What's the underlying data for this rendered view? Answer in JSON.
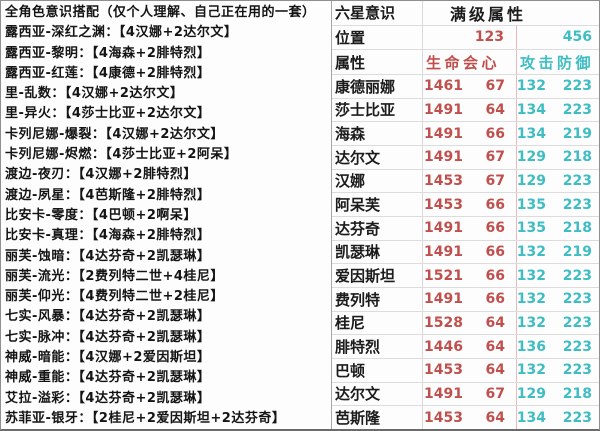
{
  "left_panel": {
    "title": "全角色意识搭配（仅个人理解、自己正在用的一套）",
    "builds": [
      "露西亚-深红之渊：【4汉娜+2达尔文】",
      "露西亚-黎明：【4海森+2腓特烈】",
      "露西亚-红莲：【4康德+2腓特烈】",
      "里-乱数：【4汉娜+2达尔文】",
      "里-异火：【4莎士比亚+2达尔文】",
      "卡列尼娜-爆裂：【4汉娜+2达尔文】",
      "卡列尼娜-烬燃：【4莎士比亚+2阿呆】",
      "渡边-夜刃：【4汉娜+2腓特烈】",
      "渡边-夙星：【4芭斯隆+2腓特烈】",
      "比安卡-零度：【4巴顿+2啊呆】",
      "比安卡-真理：【4海森+2腓特烈】",
      "丽芙-蚀暗：【4达芬奇+2凯瑟琳】",
      "丽芙-流光：【2费列特二世+4桂尼】",
      "丽芙-仰光：【4费列特二世+2桂尼】",
      "七实-风暴：【4达芬奇+2凯瑟琳】",
      "七实-脉冲：【4达芬奇+2凯瑟琳】",
      "神威-暗能：【4汉娜+2爱因斯坦】",
      "神威-重能：【4达芬奇+2凯瑟琳】",
      "艾拉-溢彩：【4达芬奇+2凯瑟琳】",
      "苏菲亚-银牙：【2桂尼+2爱因斯坦+2达芬奇】"
    ]
  },
  "right_table": {
    "header": {
      "left": "六星意识",
      "right": "满级属性"
    },
    "position_row": {
      "label": "位置",
      "group1": "123",
      "group2": "456"
    },
    "attr_row": {
      "label": "属性",
      "group1": "生命会心",
      "group2": "攻击防御"
    },
    "columns": [
      "生命",
      "会心",
      "攻击",
      "防御"
    ],
    "rows": [
      {
        "name": "康德丽娜",
        "hp": "1461",
        "crit": "67",
        "atk": "132",
        "def": "223"
      },
      {
        "name": "莎士比亚",
        "hp": "1491",
        "crit": "64",
        "atk": "134",
        "def": "223"
      },
      {
        "name": "海森",
        "hp": "1491",
        "crit": "66",
        "atk": "134",
        "def": "219"
      },
      {
        "name": "达尔文",
        "hp": "1491",
        "crit": "67",
        "atk": "129",
        "def": "218"
      },
      {
        "name": "汉娜",
        "hp": "1453",
        "crit": "67",
        "atk": "129",
        "def": "223"
      },
      {
        "name": "阿呆芙",
        "hp": "1453",
        "crit": "66",
        "atk": "135",
        "def": "223"
      },
      {
        "name": "达芬奇",
        "hp": "1491",
        "crit": "66",
        "atk": "135",
        "def": "218"
      },
      {
        "name": "凯瑟琳",
        "hp": "1491",
        "crit": "66",
        "atk": "132",
        "def": "219"
      },
      {
        "name": "爱因斯坦",
        "hp": "1521",
        "crit": "66",
        "atk": "132",
        "def": "223"
      },
      {
        "name": "费列特",
        "hp": "1491",
        "crit": "66",
        "atk": "132",
        "def": "223"
      },
      {
        "name": "桂尼",
        "hp": "1528",
        "crit": "64",
        "atk": "132",
        "def": "223"
      },
      {
        "name": "腓特烈",
        "hp": "1446",
        "crit": "64",
        "atk": "136",
        "def": "223"
      },
      {
        "name": "巴顿",
        "hp": "1453",
        "crit": "64",
        "atk": "132",
        "def": "223"
      },
      {
        "name": "达尔文",
        "hp": "1491",
        "crit": "67",
        "atk": "129",
        "def": "218"
      },
      {
        "name": "芭斯隆",
        "hp": "1453",
        "crit": "64",
        "atk": "134",
        "def": "223"
      }
    ]
  },
  "colors": {
    "red": "#c0504d",
    "teal": "#3fbdc3"
  }
}
